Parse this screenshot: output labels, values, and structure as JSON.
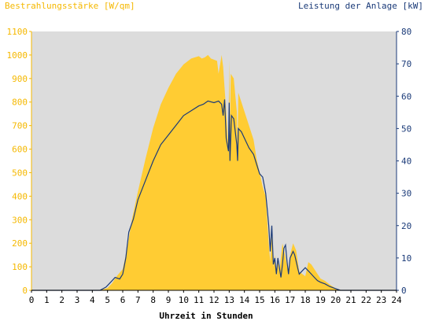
{
  "chart_data": {
    "type": "area",
    "y_left_label": "Bestrahlungsstärke [W/qm]",
    "y_right_label": "Leistung der Anlage [kW]",
    "xlabel": "Uhrzeit in Stunden",
    "xlim": [
      0,
      24
    ],
    "y_left_lim": [
      0,
      1100
    ],
    "y_right_lim": [
      0,
      80
    ],
    "x_ticks": [
      "0",
      "1",
      "2",
      "3",
      "4",
      "5",
      "6",
      "7",
      "8",
      "9",
      "10",
      "11",
      "12",
      "13",
      "14",
      "15",
      "16",
      "17",
      "18",
      "19",
      "20",
      "21",
      "22",
      "23",
      "24"
    ],
    "y_left_ticks": [
      "0",
      "100",
      "200",
      "300",
      "400",
      "500",
      "600",
      "700",
      "800",
      "900",
      "1000",
      "1100"
    ],
    "y_right_ticks": [
      "0",
      "10",
      "20",
      "30",
      "40",
      "50",
      "60",
      "70",
      "80"
    ],
    "grid": false,
    "colors": {
      "irradiance": "#ffcc33",
      "power": "#1a3a78",
      "plot_bg": "#dcdcdc",
      "left_axis": "#f5b800",
      "right_axis": "#1a3a78"
    },
    "series": [
      {
        "name": "Bestrahlungsstärke [W/qm]",
        "axis": "left",
        "style": "area",
        "x": [
          0,
          4.5,
          5.0,
          5.3,
          5.6,
          5.8,
          6.0,
          6.3,
          6.6,
          7.0,
          7.5,
          8.0,
          8.5,
          9.0,
          9.5,
          10.0,
          10.5,
          11.0,
          11.2,
          11.4,
          11.6,
          11.8,
          12.0,
          12.2,
          12.3,
          12.5,
          12.6,
          12.8,
          12.95,
          13.0,
          13.05,
          13.1,
          13.3,
          13.5,
          13.55,
          13.6,
          13.8,
          14.0,
          14.3,
          14.6,
          14.8,
          15.0,
          15.2,
          15.4,
          15.6,
          15.7,
          15.8,
          15.9,
          16.0,
          16.1,
          16.2,
          16.3,
          16.5,
          16.7,
          16.9,
          17.0,
          17.2,
          17.4,
          17.6,
          17.8,
          18.0,
          18.2,
          18.4,
          18.6,
          18.8,
          19.0,
          19.3,
          19.6,
          20.0,
          20.3,
          20.5,
          24
        ],
        "values": [
          0,
          0,
          10,
          30,
          60,
          75,
          90,
          180,
          300,
          420,
          560,
          690,
          790,
          860,
          920,
          960,
          985,
          995,
          985,
          990,
          1000,
          985,
          980,
          975,
          920,
          1000,
          950,
          760,
          600,
          980,
          700,
          920,
          900,
          760,
          600,
          840,
          800,
          760,
          700,
          640,
          560,
          500,
          440,
          400,
          200,
          120,
          240,
          100,
          150,
          60,
          120,
          80,
          200,
          140,
          70,
          150,
          200,
          170,
          80,
          70,
          60,
          120,
          110,
          90,
          70,
          50,
          40,
          25,
          8,
          2,
          0,
          0
        ]
      },
      {
        "name": "Leistung der Anlage [kW]",
        "axis": "right",
        "style": "line",
        "x": [
          0,
          4.5,
          4.9,
          5.1,
          5.3,
          5.5,
          5.8,
          6.0,
          6.2,
          6.4,
          6.7,
          7.0,
          7.5,
          8.0,
          8.5,
          9.0,
          9.5,
          10.0,
          10.5,
          11.0,
          11.3,
          11.6,
          12.0,
          12.3,
          12.5,
          12.6,
          12.7,
          12.8,
          12.95,
          13.0,
          13.05,
          13.15,
          13.3,
          13.5,
          13.55,
          13.6,
          13.8,
          14.0,
          14.3,
          14.6,
          14.8,
          15.0,
          15.2,
          15.4,
          15.5,
          15.6,
          15.7,
          15.8,
          15.9,
          16.0,
          16.1,
          16.2,
          16.3,
          16.4,
          16.5,
          16.6,
          16.7,
          16.8,
          16.9,
          17.0,
          17.1,
          17.2,
          17.3,
          17.4,
          17.5,
          17.6,
          17.8,
          18.0,
          18.2,
          18.4,
          18.6,
          18.8,
          19.0,
          19.3,
          19.6,
          20.0,
          20.3,
          20.5,
          24
        ],
        "values": [
          0,
          0,
          1,
          2,
          3,
          4,
          3.5,
          5,
          10,
          18,
          22,
          28,
          34,
          40,
          45,
          48,
          51,
          54,
          55.5,
          57,
          57.5,
          58.5,
          58,
          58.5,
          57.5,
          54,
          59,
          47,
          43,
          58,
          40,
          54,
          53,
          45,
          40,
          50,
          49,
          47,
          44,
          42,
          39,
          36,
          35,
          30,
          25,
          20,
          12,
          20,
          8,
          10,
          5,
          10,
          7,
          4,
          8,
          13,
          14,
          9,
          5,
          10,
          11,
          12,
          11,
          9,
          7,
          5,
          6,
          7,
          6,
          5,
          4,
          3,
          2.5,
          2,
          1.2,
          0.5,
          0,
          0,
          0
        ]
      }
    ]
  }
}
